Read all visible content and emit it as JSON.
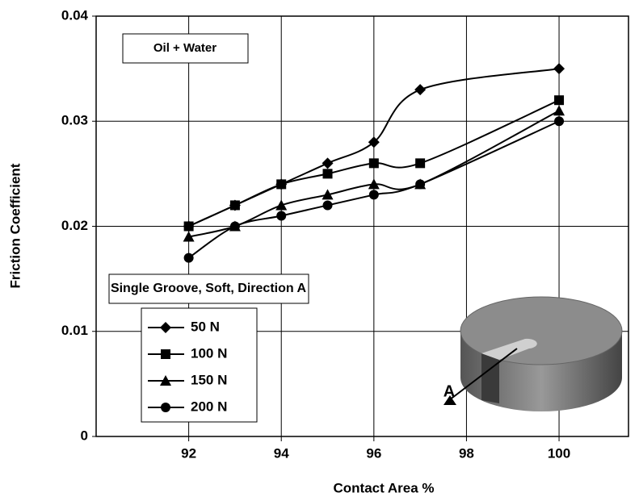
{
  "chart_data": {
    "type": "line",
    "x_label": "Contact Area %",
    "y_label": "Friction Coefficient",
    "x": [
      92,
      93,
      94,
      95,
      96,
      97,
      100
    ],
    "series": [
      {
        "name": "50 N",
        "color": "#000000",
        "marker": "diamond",
        "values": [
          0.02,
          0.022,
          0.024,
          0.026,
          0.028,
          0.033,
          0.035
        ]
      },
      {
        "name": "100 N",
        "color": "#000000",
        "marker": "square",
        "values": [
          0.02,
          0.022,
          0.024,
          0.025,
          0.026,
          0.026,
          0.032
        ]
      },
      {
        "name": "150 N",
        "color": "#000000",
        "marker": "triangle",
        "values": [
          0.019,
          0.02,
          0.022,
          0.023,
          0.024,
          0.024,
          0.031
        ]
      },
      {
        "name": "200 N",
        "color": "#000000",
        "marker": "circle",
        "values": [
          0.017,
          0.02,
          0.021,
          0.022,
          0.023,
          0.024,
          0.03
        ]
      }
    ],
    "xlim": [
      90,
      101.5
    ],
    "xticks": [
      92,
      94,
      96,
      98,
      100
    ],
    "ylim": [
      0,
      0.04
    ],
    "yticks": [
      0,
      0.01,
      0.02,
      0.03,
      0.04
    ],
    "grid": true,
    "annotations": [
      "Oil + Water",
      "Single Groove, Soft, Direction A",
      "A"
    ]
  }
}
